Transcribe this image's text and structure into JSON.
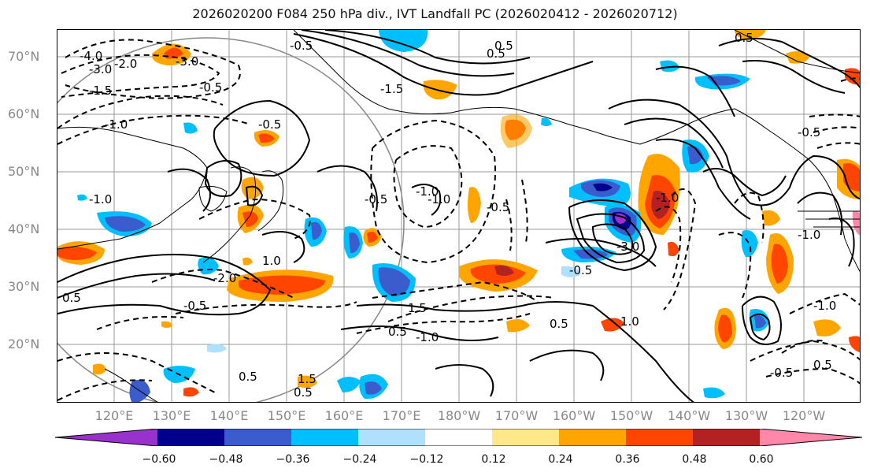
{
  "title": "2026020200 F084 250 hPa div., IVT Landfall PC (2026020412 - 2026020712)",
  "map": {
    "lat_labels": [
      "70°N",
      "60°N",
      "50°N",
      "40°N",
      "30°N",
      "20°N"
    ],
    "lon_labels": [
      "120°E",
      "130°E",
      "140°E",
      "150°E",
      "160°E",
      "170°E",
      "180°W",
      "170°W",
      "160°W",
      "150°W",
      "140°W",
      "130°W",
      "120°W"
    ],
    "contour_labels": [
      "-4.0",
      "-3.0",
      "-2.0",
      "-1.5",
      "-1.0",
      "-0.5",
      "-3.0",
      "-0.5",
      "-1.5",
      "-1.0",
      "-0.5",
      "0.5",
      "-0.5",
      "-1.0",
      "0.5",
      "-2.0",
      "1.0",
      "-0.5",
      "1.5",
      "0.5",
      "-1.0",
      "0.5",
      "-1.0",
      "-0.5",
      "0.5",
      "0.5",
      "-1.0",
      "1.0",
      "-3.0",
      "-1.0",
      "-0.5",
      "-1.0",
      "0.5",
      "1.5",
      "0.5",
      "-0.5",
      "0.5",
      "-0.5"
    ],
    "colors": {
      "coast": "#000000",
      "grid": "#999999",
      "circle": "#888888"
    }
  },
  "colorbar": {
    "colors": [
      "#9932cc",
      "#00008b",
      "#3a5ccc",
      "#00bfff",
      "#b0e0ff",
      "#ffffff",
      "#ffe78a",
      "#ffa500",
      "#ff4500",
      "#b22222",
      "#ff88aa"
    ],
    "tick_labels": [
      "−0.60",
      "−0.48",
      "−0.36",
      "−0.24",
      "−0.12",
      "0.12",
      "0.24",
      "0.36",
      "0.48",
      "0.60"
    ],
    "extend": "both"
  }
}
